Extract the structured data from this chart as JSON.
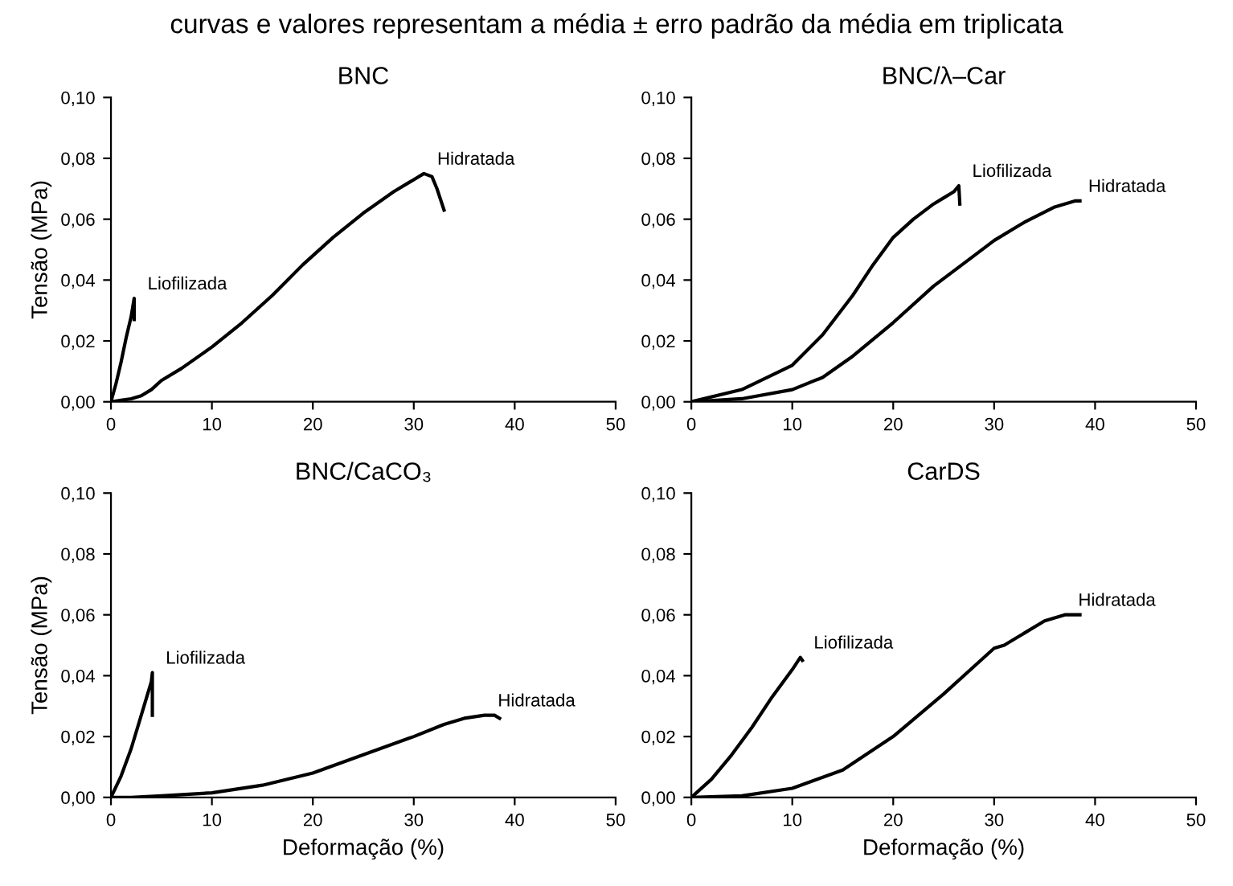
{
  "chart_data": [
    {
      "type": "line",
      "title": "BNC",
      "ylabel": "Tensão (MPa)",
      "annotations": [
        "curvas e valores representam a média ± erro padrão da média em triplicata"
      ],
      "xlim": [
        0,
        50
      ],
      "xticks": [
        0,
        10,
        20,
        30,
        40,
        50
      ],
      "ylim": [
        0,
        0.1
      ],
      "yticks": [
        {
          "value": 0,
          "label": "0,00"
        },
        {
          "value": 0.02,
          "label": "0,02"
        },
        {
          "value": 0.04,
          "label": "0,04"
        },
        {
          "value": 0.06,
          "label": "0,06"
        },
        {
          "value": 0.08,
          "label": "0,08"
        },
        {
          "value": 0.1,
          "label": "0,10"
        }
      ],
      "grid": false,
      "legend": false,
      "marker": "none",
      "line_style": "solid",
      "series": [
        {
          "name": "Liofilizada",
          "color": "#000000",
          "x": [
            0,
            0.5,
            1,
            1.5,
            2,
            2.2,
            2.3,
            2.3
          ],
          "values": [
            0,
            0.006,
            0.013,
            0.021,
            0.028,
            0.032,
            0.034,
            0.027
          ]
        },
        {
          "name": "Hidratada",
          "color": "#000000",
          "x": [
            0,
            1,
            2,
            3,
            4,
            5,
            7,
            10,
            13,
            16,
            19,
            22,
            25,
            28,
            30,
            31,
            31.8,
            32.3,
            33
          ],
          "values": [
            0,
            0.0005,
            0.001,
            0.002,
            0.004,
            0.007,
            0.011,
            0.018,
            0.026,
            0.035,
            0.045,
            0.054,
            0.062,
            0.069,
            0.073,
            0.075,
            0.074,
            0.07,
            0.063
          ]
        }
      ]
    },
    {
      "type": "line",
      "title": "BNC/λ–Car",
      "xlim": [
        0,
        50
      ],
      "xticks": [
        0,
        10,
        20,
        30,
        40,
        50
      ],
      "ylim": [
        0,
        0.1
      ],
      "yticks": [
        {
          "value": 0,
          "label": "0,00"
        },
        {
          "value": 0.02,
          "label": "0,02"
        },
        {
          "value": 0.04,
          "label": "0,04"
        },
        {
          "value": 0.06,
          "label": "0,06"
        },
        {
          "value": 0.08,
          "label": "0,08"
        },
        {
          "value": 0.1,
          "label": "0,10"
        }
      ],
      "grid": false,
      "legend": false,
      "marker": "none",
      "line_style": "solid",
      "series": [
        {
          "name": "Liofilizada",
          "color": "#000000",
          "x": [
            0,
            5,
            10,
            13,
            16,
            18,
            20,
            22,
            24,
            25,
            26,
            26.5,
            26.6
          ],
          "values": [
            0,
            0.004,
            0.012,
            0.022,
            0.035,
            0.045,
            0.054,
            0.06,
            0.065,
            0.067,
            0.069,
            0.071,
            0.065
          ]
        },
        {
          "name": "Hidratada",
          "color": "#000000",
          "x": [
            0,
            5,
            10,
            13,
            16,
            20,
            24,
            28,
            30,
            33,
            36,
            38,
            38.5
          ],
          "values": [
            0,
            0.001,
            0.004,
            0.008,
            0.015,
            0.026,
            0.038,
            0.048,
            0.053,
            0.059,
            0.064,
            0.066,
            0.066
          ]
        }
      ]
    },
    {
      "type": "line",
      "title": "BNC/CaCO₃",
      "xlabel": "Deformação (%)",
      "ylabel": "Tensão (MPa)",
      "xlim": [
        0,
        50
      ],
      "xticks": [
        0,
        10,
        20,
        30,
        40,
        50
      ],
      "ylim": [
        0,
        0.1
      ],
      "yticks": [
        {
          "value": 0,
          "label": "0,00"
        },
        {
          "value": 0.02,
          "label": "0,02"
        },
        {
          "value": 0.04,
          "label": "0,04"
        },
        {
          "value": 0.06,
          "label": "0,06"
        },
        {
          "value": 0.08,
          "label": "0,08"
        },
        {
          "value": 0.1,
          "label": "0,10"
        }
      ],
      "grid": false,
      "legend": false,
      "marker": "none",
      "line_style": "solid",
      "series": [
        {
          "name": "Liofilizada",
          "color": "#000000",
          "x": [
            0,
            1,
            2,
            3,
            4,
            4.1,
            4.1
          ],
          "values": [
            0,
            0.007,
            0.016,
            0.027,
            0.038,
            0.041,
            0.027
          ]
        },
        {
          "name": "Hidratada",
          "color": "#000000",
          "x": [
            0,
            2,
            5,
            10,
            15,
            20,
            25,
            30,
            33,
            35,
            37,
            38,
            38.5
          ],
          "values": [
            0,
            0,
            0.0005,
            0.0015,
            0.004,
            0.008,
            0.014,
            0.02,
            0.024,
            0.026,
            0.027,
            0.027,
            0.026
          ]
        }
      ]
    },
    {
      "type": "line",
      "title": "CarDS",
      "xlabel": "Deformação (%)",
      "xlim": [
        0,
        50
      ],
      "xticks": [
        0,
        10,
        20,
        30,
        40,
        50
      ],
      "ylim": [
        0,
        0.1
      ],
      "yticks": [
        {
          "value": 0,
          "label": "0,00"
        },
        {
          "value": 0.02,
          "label": "0,02"
        },
        {
          "value": 0.04,
          "label": "0,04"
        },
        {
          "value": 0.06,
          "label": "0,06"
        },
        {
          "value": 0.08,
          "label": "0,08"
        },
        {
          "value": 0.1,
          "label": "0,10"
        }
      ],
      "grid": false,
      "legend": false,
      "marker": "none",
      "line_style": "solid",
      "series": [
        {
          "name": "Liofilizada",
          "color": "#000000",
          "x": [
            0,
            2,
            4,
            6,
            8,
            10,
            10.8,
            11
          ],
          "values": [
            0,
            0.006,
            0.014,
            0.023,
            0.033,
            0.042,
            0.046,
            0.045
          ]
        },
        {
          "name": "Hidratada",
          "color": "#000000",
          "x": [
            0,
            5,
            10,
            15,
            20,
            25,
            28,
            30,
            31,
            33,
            35,
            37,
            38.5
          ],
          "values": [
            0,
            0.0005,
            0.003,
            0.009,
            0.02,
            0.034,
            0.043,
            0.049,
            0.05,
            0.054,
            0.058,
            0.06,
            0.06
          ]
        }
      ]
    }
  ]
}
